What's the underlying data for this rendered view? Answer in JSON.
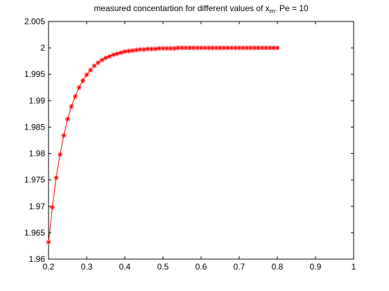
{
  "chart_data": {
    "type": "line",
    "title": {
      "prefix": "measured concentartion for different values of x",
      "subscript": "m",
      "suffix": ". Pe = 10"
    },
    "xlabel": "",
    "ylabel": "",
    "xlim": [
      0.2,
      1.0
    ],
    "ylim": [
      1.96,
      2.005
    ],
    "xticks": [
      0.2,
      0.3,
      0.4,
      0.5,
      0.6,
      0.7,
      0.8,
      0.9,
      1.0
    ],
    "xtick_labels": [
      "0.2",
      "0.3",
      "0.4",
      "0.5",
      "0.6",
      "0.7",
      "0.8",
      "0.9",
      "1"
    ],
    "yticks": [
      1.96,
      1.965,
      1.97,
      1.975,
      1.98,
      1.985,
      1.99,
      1.995,
      2.0,
      2.005
    ],
    "ytick_labels": [
      "1.96",
      "1.965",
      "1.97",
      "1.975",
      "1.98",
      "1.985",
      "1.99",
      "1.995",
      "2",
      "2.005"
    ],
    "grid": false,
    "series": [
      {
        "color": "#ff0000",
        "marker": "asterisk",
        "x": [
          0.2,
          0.21,
          0.22,
          0.23,
          0.24,
          0.25,
          0.26,
          0.27,
          0.28,
          0.29,
          0.3,
          0.31,
          0.32,
          0.33,
          0.34,
          0.35,
          0.36,
          0.37,
          0.38,
          0.39,
          0.4,
          0.41,
          0.42,
          0.43,
          0.44,
          0.45,
          0.46,
          0.47,
          0.48,
          0.49,
          0.5,
          0.51,
          0.52,
          0.53,
          0.54,
          0.55,
          0.56,
          0.57,
          0.58,
          0.59,
          0.6,
          0.61,
          0.62,
          0.63,
          0.64,
          0.65,
          0.66,
          0.67,
          0.68,
          0.69,
          0.7,
          0.71,
          0.72,
          0.73,
          0.74,
          0.75,
          0.76,
          0.77,
          0.78,
          0.79,
          0.8
        ],
        "y": [
          1.9632,
          1.9698,
          1.9754,
          1.9798,
          1.9834,
          1.9865,
          1.9889,
          1.9908,
          1.9925,
          1.9938,
          1.9949,
          1.9958,
          1.9966,
          1.9972,
          1.9977,
          1.9981,
          1.9984,
          1.9987,
          1.9989,
          1.9991,
          1.9993,
          1.9994,
          1.9995,
          1.9996,
          1.9997,
          1.9997,
          1.9998,
          1.9998,
          1.9998,
          1.9999,
          1.9999,
          1.9999,
          1.9999,
          1.9999,
          2.0,
          2.0,
          2.0,
          2.0,
          2.0,
          2.0,
          2.0,
          2.0,
          2.0,
          2.0,
          2.0,
          2.0,
          2.0,
          2.0,
          2.0,
          2.0,
          2.0,
          2.0,
          2.0,
          2.0,
          2.0,
          2.0,
          2.0,
          2.0,
          2.0,
          2.0,
          2.0
        ]
      }
    ]
  }
}
